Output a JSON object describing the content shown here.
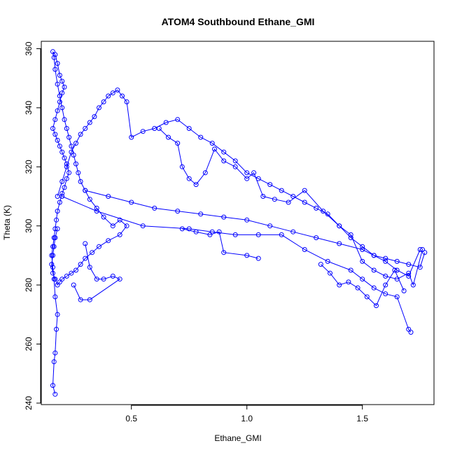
{
  "chart_data": {
    "type": "scatter",
    "title": "ATOM4 Southbound Ethane_GMI",
    "xlabel": "Ethane_GMI",
    "ylabel": "Theta (K)",
    "xlim": [
      0.11,
      1.81
    ],
    "ylim": [
      239.5,
      362.5
    ],
    "xticks": [
      "0.5",
      "1.0",
      "1.5"
    ],
    "xtick_values": [
      0.5,
      1.0,
      1.5
    ],
    "yticks": [
      "240",
      "260",
      "280",
      "300",
      "320",
      "340",
      "360"
    ],
    "ytick_values": [
      240,
      260,
      280,
      300,
      320,
      340,
      360
    ],
    "grid": false,
    "legend": "none",
    "marker": "open-circle",
    "connected": true,
    "color": "#0000ff",
    "series": [
      {
        "x": [
          0.17,
          0.16,
          0.165,
          0.17,
          0.175,
          0.18,
          0.17,
          0.165,
          0.16,
          0.155,
          0.16,
          0.165,
          0.17,
          0.175,
          0.18,
          0.19,
          0.2,
          0.21,
          0.22,
          0.23,
          0.22,
          0.21,
          0.2,
          0.19,
          0.18,
          0.17,
          0.16,
          0.17,
          0.18,
          0.19,
          0.2,
          0.21,
          0.2,
          0.19,
          0.18,
          0.17,
          0.16,
          0.165,
          0.17,
          0.18,
          0.19,
          0.2,
          0.21,
          0.22,
          0.23,
          0.24,
          0.25,
          0.26,
          0.27,
          0.28,
          0.3,
          0.32,
          0.35,
          0.38,
          0.42,
          0.45,
          0.48,
          0.45,
          0.4,
          0.36,
          0.33,
          0.3,
          0.28,
          0.26,
          0.24,
          0.22,
          0.2,
          0.19,
          0.18,
          0.17,
          0.16,
          0.155,
          0.16,
          0.165,
          0.17,
          0.18
        ],
        "y": [
          243,
          246,
          254,
          257,
          265,
          270,
          276,
          282,
          286,
          290,
          293,
          296,
          299,
          302,
          305,
          308,
          311,
          313,
          316,
          318,
          321,
          323,
          325,
          327,
          329,
          331,
          333,
          336,
          339,
          342,
          345,
          347,
          349,
          351,
          355,
          358,
          359,
          357,
          353,
          348,
          344,
          340,
          336,
          333,
          330,
          327,
          324,
          321,
          318,
          315,
          312,
          309,
          306,
          303,
          300,
          302,
          300,
          297,
          295,
          293,
          291,
          289,
          287,
          285,
          284,
          283,
          282,
          281,
          280,
          282,
          284,
          287,
          290,
          293,
          296,
          299
        ]
      },
      {
        "x": [
          0.18,
          0.2,
          0.22,
          0.24,
          0.26,
          0.28,
          0.3,
          0.32,
          0.34,
          0.36,
          0.38,
          0.4,
          0.42,
          0.44,
          0.46,
          0.48,
          0.5,
          0.55,
          0.6,
          0.65,
          0.7,
          0.75,
          0.8,
          0.85,
          0.9,
          0.95,
          1.0,
          1.05,
          1.1,
          1.15,
          1.2,
          1.25,
          1.3,
          1.35,
          1.4,
          1.45,
          1.5,
          1.55,
          1.6,
          1.65,
          1.7,
          1.75
        ],
        "y": [
          310,
          315,
          320,
          325,
          328,
          331,
          333,
          335,
          337,
          340,
          342,
          344,
          345,
          346,
          344,
          342,
          330,
          332,
          333,
          335,
          336,
          333,
          330,
          328,
          325,
          322,
          318,
          316,
          314,
          312,
          310,
          308,
          306,
          304,
          300,
          296,
          293,
          290,
          288,
          285,
          283,
          292
        ]
      },
      {
        "x": [
          0.3,
          0.4,
          0.5,
          0.6,
          0.7,
          0.8,
          0.9,
          1.0,
          1.1,
          1.2,
          1.3,
          1.4,
          1.5,
          1.55,
          1.6,
          1.65,
          1.7,
          1.75,
          1.77
        ],
        "y": [
          312,
          310,
          308,
          306,
          305,
          304,
          303,
          302,
          300,
          298,
          296,
          294,
          292,
          290,
          289,
          288,
          287,
          286,
          291
        ]
      },
      {
        "x": [
          0.2,
          0.35,
          0.55,
          0.75,
          0.85,
          0.95,
          1.05,
          1.15,
          1.25,
          1.35,
          1.45,
          1.5,
          1.55,
          1.6,
          1.65,
          1.7,
          1.71
        ],
        "y": [
          310,
          305,
          300,
          299,
          298,
          297,
          297,
          297,
          292,
          288,
          285,
          282,
          279,
          277,
          276,
          265,
          264
        ]
      },
      {
        "x": [
          0.62,
          0.66,
          0.7,
          0.72,
          0.75,
          0.78,
          0.82,
          0.86,
          0.9,
          0.95,
          1.0,
          1.03,
          1.07,
          1.12,
          1.18,
          1.25,
          1.33,
          1.4,
          1.45,
          1.5,
          1.55,
          1.6,
          1.65,
          1.7,
          1.72,
          1.76
        ],
        "y": [
          333,
          330,
          328,
          320,
          316,
          314,
          318,
          326,
          322,
          320,
          316,
          318,
          310,
          309,
          308,
          312,
          305,
          300,
          297,
          288,
          285,
          283,
          282,
          284,
          280,
          292
        ]
      },
      {
        "x": [
          1.32,
          1.36,
          1.4,
          1.44,
          1.48,
          1.52,
          1.56,
          1.6,
          1.64,
          1.68
        ],
        "y": [
          287,
          284,
          280,
          281,
          279,
          276,
          273,
          280,
          285,
          278
        ]
      },
      {
        "x": [
          0.3,
          0.32,
          0.35,
          0.38,
          0.42,
          0.45,
          0.32,
          0.28,
          0.25
        ],
        "y": [
          294,
          286,
          282,
          282,
          283,
          282,
          275,
          275,
          280
        ]
      },
      {
        "x": [
          0.72,
          0.78,
          0.84,
          0.88,
          0.9,
          1.0,
          1.05
        ],
        "y": [
          299,
          298,
          297,
          298,
          291,
          290,
          289
        ]
      }
    ]
  }
}
